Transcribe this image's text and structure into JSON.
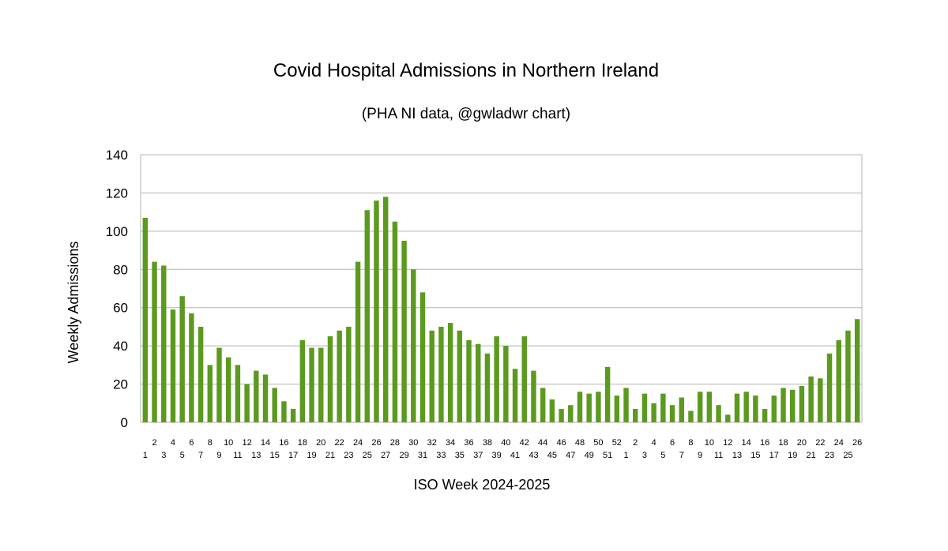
{
  "chart_data": {
    "type": "bar",
    "title": "Covid Hospital Admissions in Northern Ireland",
    "subtitle": "(PHA NI data, @gwladwr chart)",
    "xlabel": "ISO Week 2024-2025",
    "ylabel": "Weekly Admissions",
    "ylim": [
      0,
      140
    ],
    "yticks": [
      0,
      20,
      40,
      60,
      80,
      100,
      120,
      140
    ],
    "grid": true,
    "legend": "none",
    "bar_color": "#5b9a1f",
    "categories": [
      "1",
      "2",
      "3",
      "4",
      "5",
      "6",
      "7",
      "8",
      "9",
      "10",
      "11",
      "12",
      "13",
      "14",
      "15",
      "16",
      "17",
      "18",
      "19",
      "20",
      "21",
      "22",
      "23",
      "24",
      "25",
      "26",
      "27",
      "28",
      "29",
      "30",
      "31",
      "32",
      "33",
      "34",
      "35",
      "36",
      "37",
      "38",
      "39",
      "40",
      "41",
      "42",
      "43",
      "44",
      "45",
      "46",
      "47",
      "48",
      "49",
      "50",
      "51",
      "52",
      "1",
      "2",
      "3",
      "4",
      "5",
      "6",
      "7",
      "8",
      "9",
      "10",
      "11",
      "12",
      "13",
      "14",
      "15",
      "16",
      "17",
      "18",
      "19",
      "20",
      "21",
      "22",
      "23",
      "24",
      "25",
      "26"
    ],
    "values": [
      107,
      84,
      82,
      59,
      66,
      57,
      50,
      30,
      39,
      34,
      30,
      20,
      27,
      25,
      18,
      11,
      7,
      43,
      39,
      39,
      45,
      48,
      50,
      84,
      111,
      116,
      118,
      105,
      95,
      80,
      68,
      48,
      50,
      52,
      48,
      43,
      41,
      36,
      45,
      40,
      28,
      45,
      27,
      18,
      12,
      7,
      9,
      16,
      15,
      16,
      29,
      14,
      18,
      7,
      15,
      10,
      15,
      9,
      13,
      6,
      16,
      16,
      9,
      4,
      15,
      16,
      14,
      7,
      14,
      18,
      17,
      19,
      24,
      23,
      36,
      43,
      48,
      54
    ]
  }
}
